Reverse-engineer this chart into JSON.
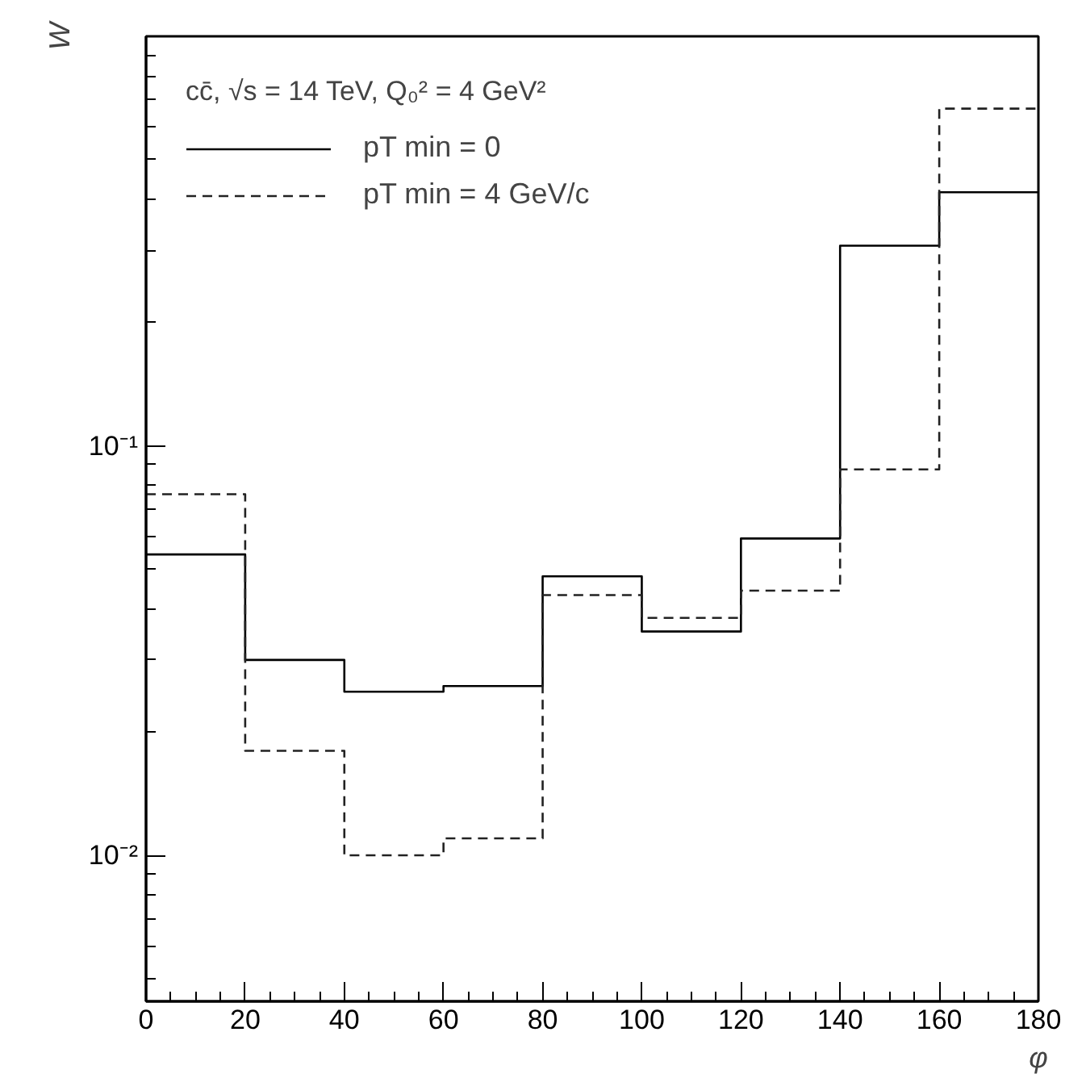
{
  "chart_data": {
    "type": "histogram",
    "legend_title": "cc̄, √s = 14 TeV, Q₀² = 4 GeV²",
    "xlabel": "φ",
    "ylabel": "W",
    "bins": [
      0,
      20,
      40,
      60,
      80,
      100,
      120,
      140,
      160,
      180
    ],
    "series": [
      {
        "name": "pT min = 0",
        "color": "#000000",
        "line_style": "solid",
        "values": [
          0.0543,
          0.03,
          0.0251,
          0.0259,
          0.048,
          0.0352,
          0.0594,
          0.308,
          0.416
        ]
      },
      {
        "name": "pT min = 4 GeV/c",
        "color": "#222222",
        "line_style": "dashed",
        "values": [
          0.0762,
          0.018,
          0.01,
          0.011,
          0.0432,
          0.038,
          0.0443,
          0.0876,
          0.666
        ]
      }
    ],
    "xlim": [
      0,
      180
    ],
    "xticks": [
      0,
      20,
      40,
      60,
      80,
      100,
      120,
      140,
      160,
      180
    ],
    "ylim": [
      0.0044,
      1.0
    ],
    "yticks": [
      {
        "value": 0.01,
        "label": "10⁻²"
      },
      {
        "value": 0.1,
        "label": "10⁻¹"
      }
    ],
    "log": "y",
    "grid": false,
    "legend": "top left"
  }
}
